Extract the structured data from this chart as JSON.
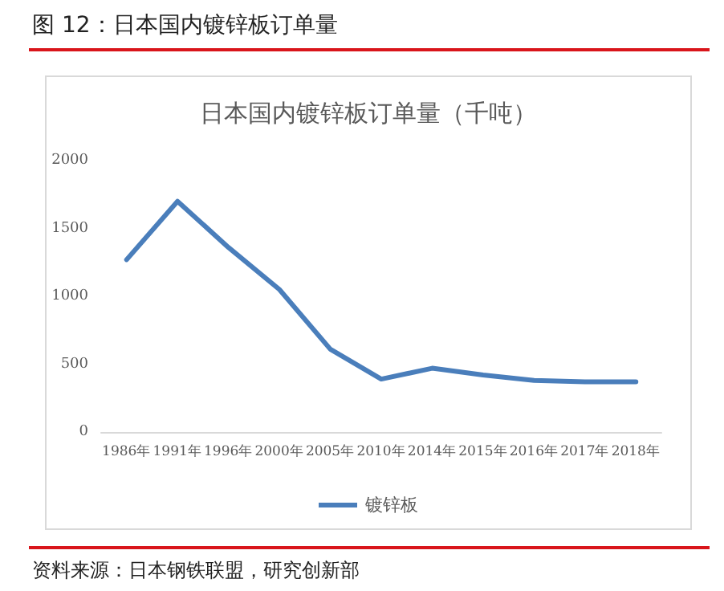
{
  "chart_data": {
    "type": "line",
    "title": "日本国内镀锌板订单量（千吨）",
    "annotations": [
      "图 12：日本国内镀锌板订单量",
      "资料来源：日本钢铁联盟，研究创新部"
    ],
    "categories": [
      "1986年",
      "1991年",
      "1996年",
      "2000年",
      "2005年",
      "2010年",
      "2014年",
      "2015年",
      "2016年",
      "2017年",
      "2018年"
    ],
    "series": [
      {
        "name": "镀锌板",
        "color": "#4a7ebb",
        "values": [
          1270,
          1700,
          1360,
          1050,
          610,
          390,
          470,
          420,
          380,
          370,
          370
        ]
      }
    ],
    "ylim": [
      0,
      2000
    ],
    "yticks": [
      0,
      500,
      1000,
      1500,
      2000
    ],
    "grid": false,
    "legend": "bottom",
    "marker": "none",
    "line_style": "solid"
  }
}
